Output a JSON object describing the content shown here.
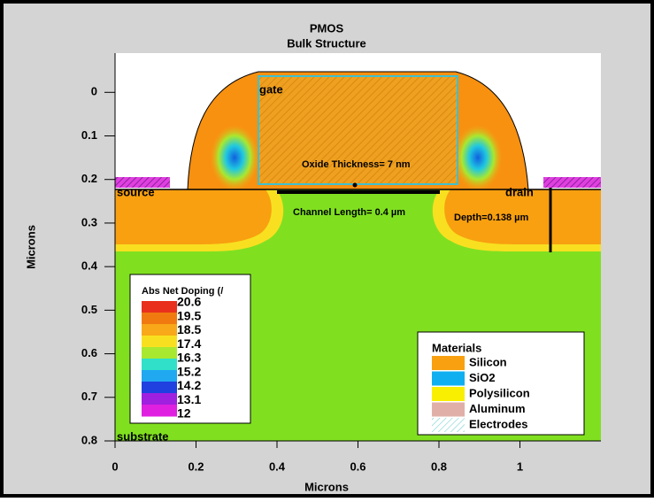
{
  "chart_data": {
    "type": "contour",
    "title": "PMOS",
    "subtitle": "Bulk Structure",
    "x_label": "Microns",
    "y_label": "Microns",
    "xlim": [
      0,
      1.2
    ],
    "ylim": [
      -0.09,
      0.8
    ],
    "y_inverted": true,
    "xticks": [
      0,
      0.2,
      0.4,
      0.6,
      0.8,
      1
    ],
    "yticks": [
      0,
      0.1,
      0.2,
      0.3,
      0.4,
      0.5,
      0.6,
      0.7,
      0.8
    ],
    "annotations": [
      "gate",
      "source",
      "drain",
      "substrate",
      "Oxide Thickness= 7 nm",
      "Channel Length= 0.4 µm",
      "Depth=0.138 µm"
    ],
    "colorbar": {
      "title": "Abs Net Doping (/",
      "levels": [
        20.6,
        19.5,
        18.5,
        17.4,
        16.3,
        15.2,
        14.2,
        13.1,
        12
      ],
      "colors": [
        "#e8301c",
        "#f07a10",
        "#f8a818",
        "#f8e020",
        "#a8e830",
        "#30e0c8",
        "#20a8f0",
        "#2040e0",
        "#a020e0",
        "#e020e0"
      ]
    },
    "legend": {
      "title": "Materials",
      "items": [
        {
          "name": "Silicon",
          "color": "#f8a010"
        },
        {
          "name": "SiO2",
          "color": "#10b0f0"
        },
        {
          "name": "Polysilicon",
          "color": "#f8f000"
        },
        {
          "name": "Aluminum",
          "color": "#e0b0a8"
        },
        {
          "name": "Electrodes",
          "color": "#d8f4f4"
        }
      ]
    }
  }
}
